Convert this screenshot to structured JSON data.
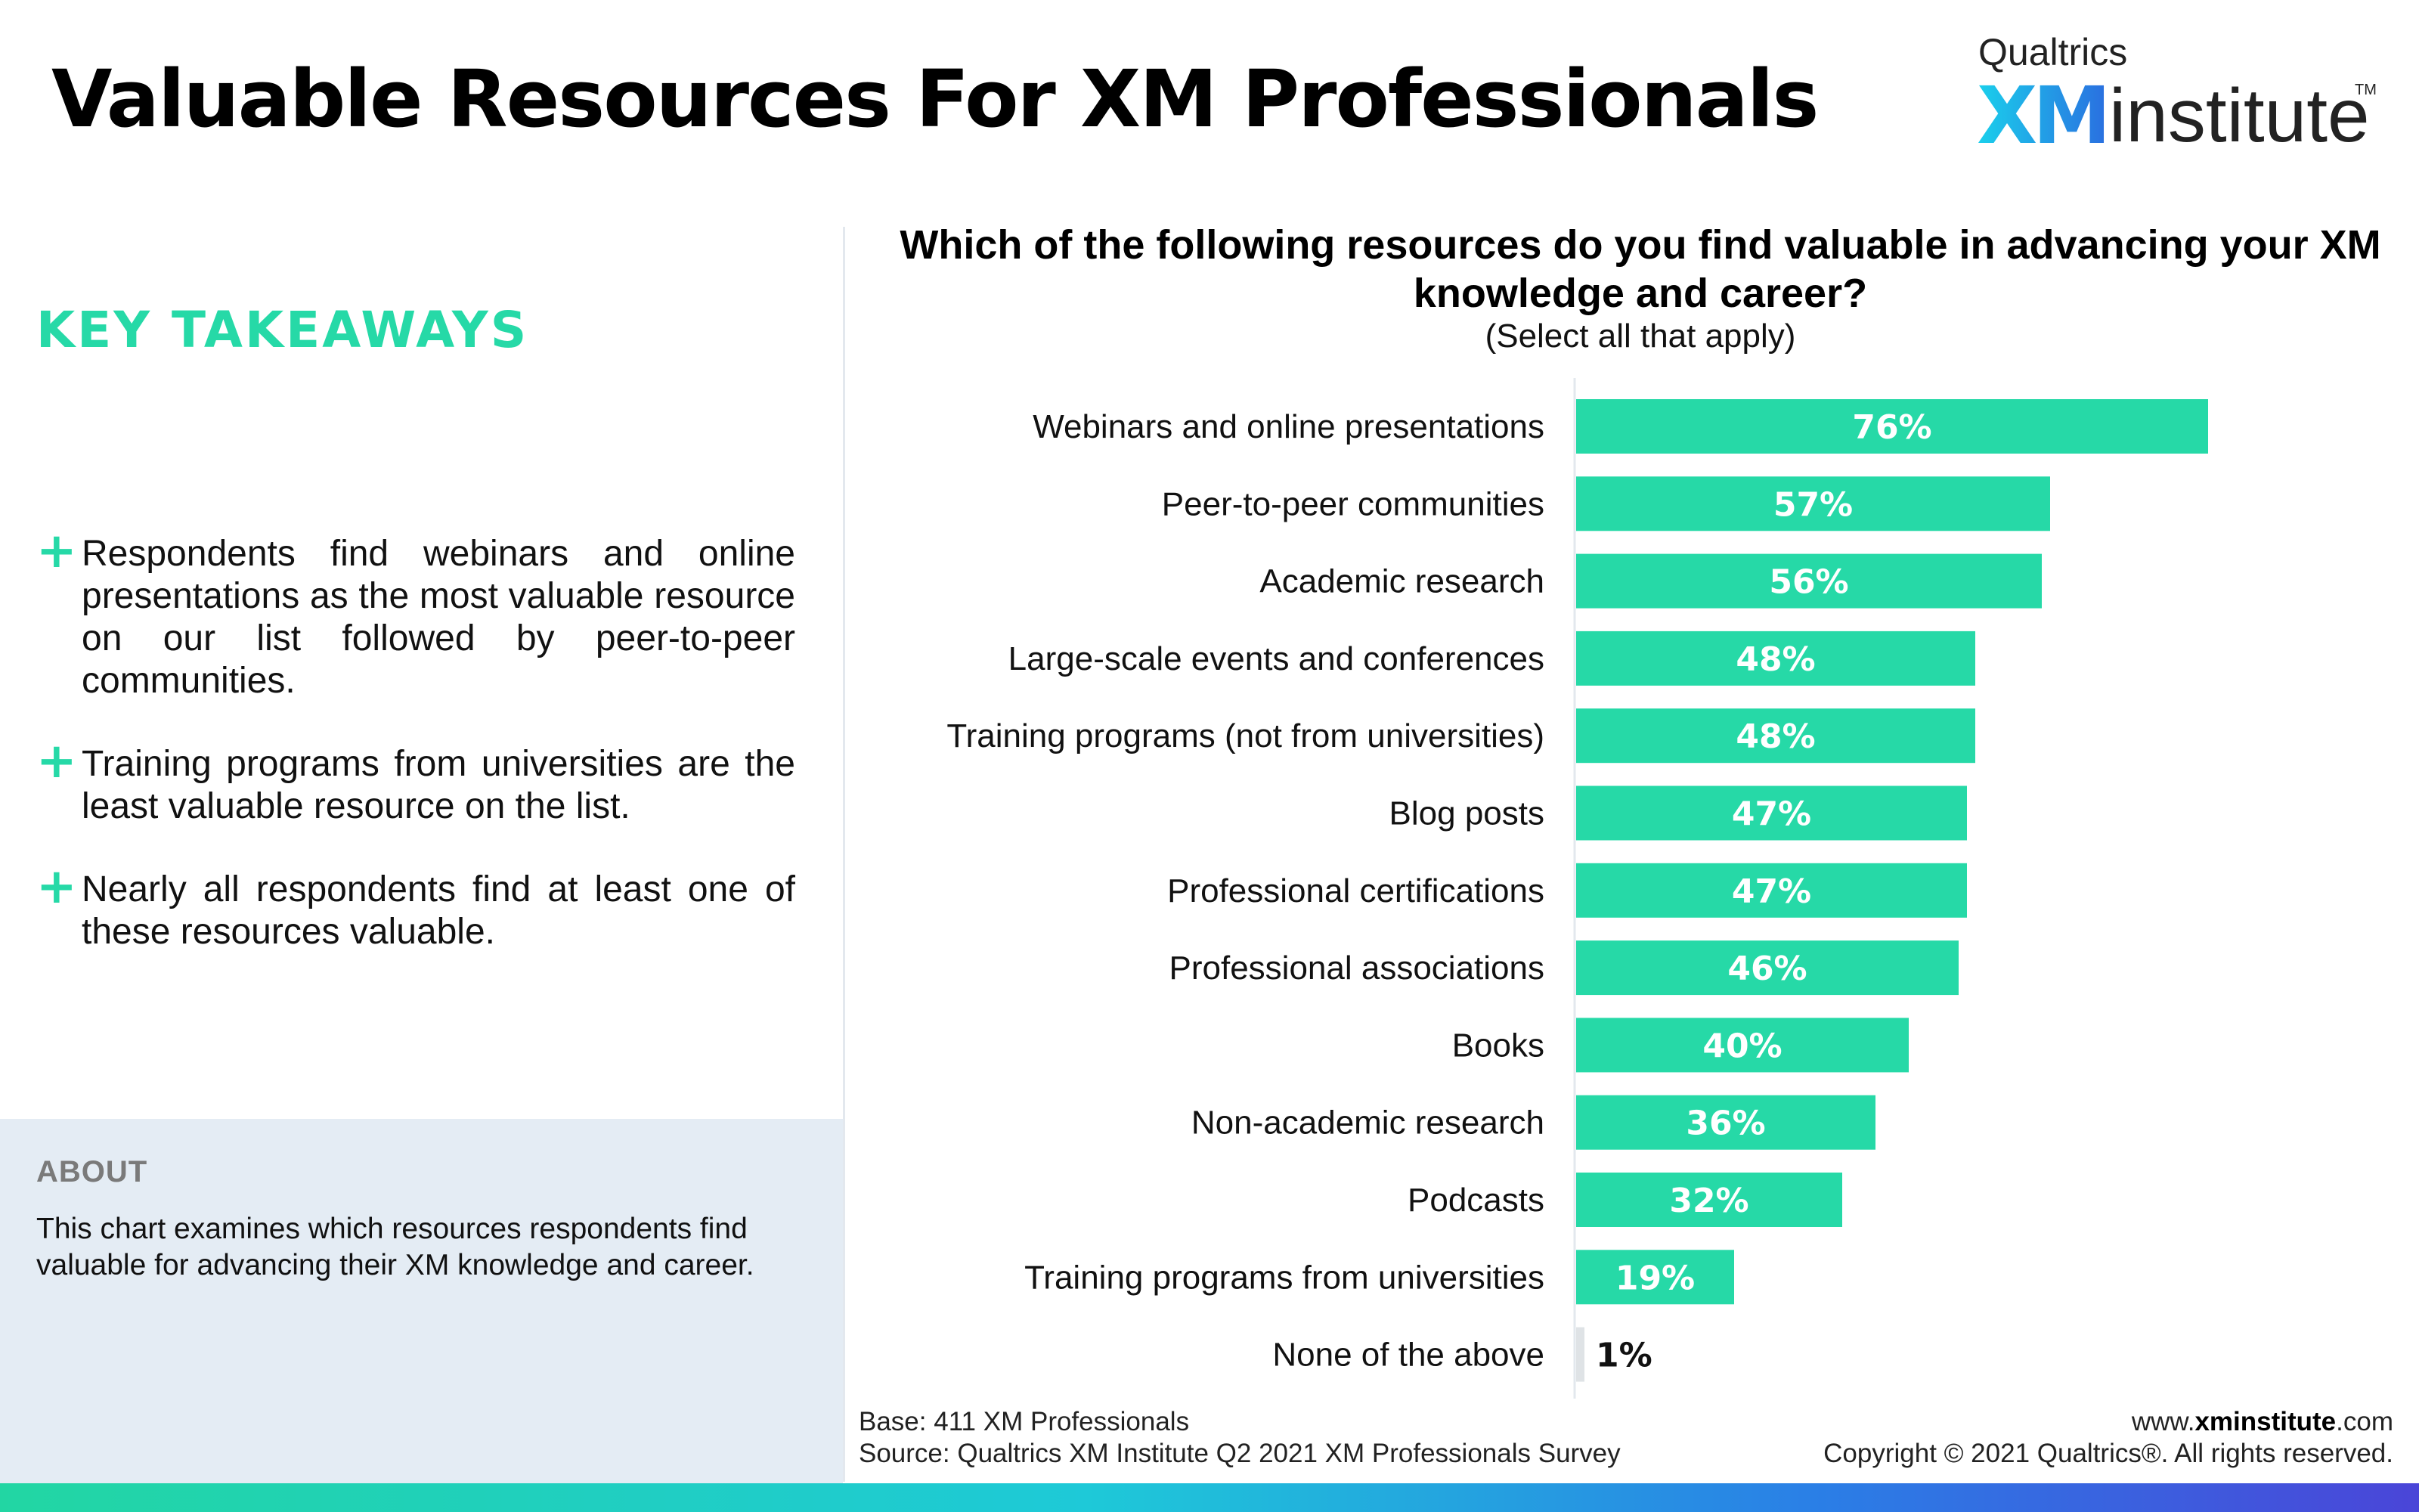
{
  "header": {
    "title": "Valuable Resources For XM Professionals",
    "logo": {
      "brand": "Qualtrics",
      "xm": "XM",
      "institute": "institute",
      "tm": "TM"
    }
  },
  "key_takeaways": {
    "heading": "KEY TAKEAWAYS",
    "items": [
      "Respondents find webinars and online presentations as the most valuable resource on our list followed by peer-to-peer communities.",
      "Training programs from universities are the least valuable resource on the list.",
      "Nearly all respondents find at least one of these resources valuable."
    ]
  },
  "about": {
    "heading": "ABOUT",
    "text": "This chart examines which resources respondents find valuable for advancing their XM knowledge and career."
  },
  "footer": {
    "base": "Base: 411 XM Professionals",
    "source": "Source: Qualtrics XM Institute Q2 2021 XM Professionals Survey",
    "website_prefix": "www.",
    "website_bold": "xminstitute",
    "website_suffix": ".com",
    "copyright": "Copyright © 2021 Qualtrics®. All rights reserved."
  },
  "colors": {
    "accent": "#26d9a7",
    "bar": "#26d9a7",
    "bar_low": "#dfe3e6",
    "about_bg": "#e4ecf4"
  },
  "chart_data": {
    "type": "bar",
    "orientation": "horizontal",
    "title": "Which of the following resources do you find valuable in advancing your XM knowledge and career?",
    "subtitle": "(Select all that apply)",
    "categories": [
      "Webinars and online presentations",
      "Peer-to-peer communities",
      "Academic research",
      "Large-scale events and conferences",
      "Training programs (not from universities)",
      "Blog posts",
      "Professional certifications",
      "Professional associations",
      "Books",
      "Non-academic research",
      "Podcasts",
      "Training programs from universities",
      "None of the above"
    ],
    "values": [
      76,
      57,
      56,
      48,
      48,
      47,
      47,
      46,
      40,
      36,
      32,
      19,
      1
    ],
    "data_labels": [
      "76%",
      "57%",
      "56%",
      "48%",
      "48%",
      "47%",
      "47%",
      "46%",
      "40%",
      "36%",
      "32%",
      "19%",
      "1%"
    ],
    "unit": "%",
    "xlim": [
      0,
      100
    ],
    "grid": false,
    "legend": "none"
  }
}
